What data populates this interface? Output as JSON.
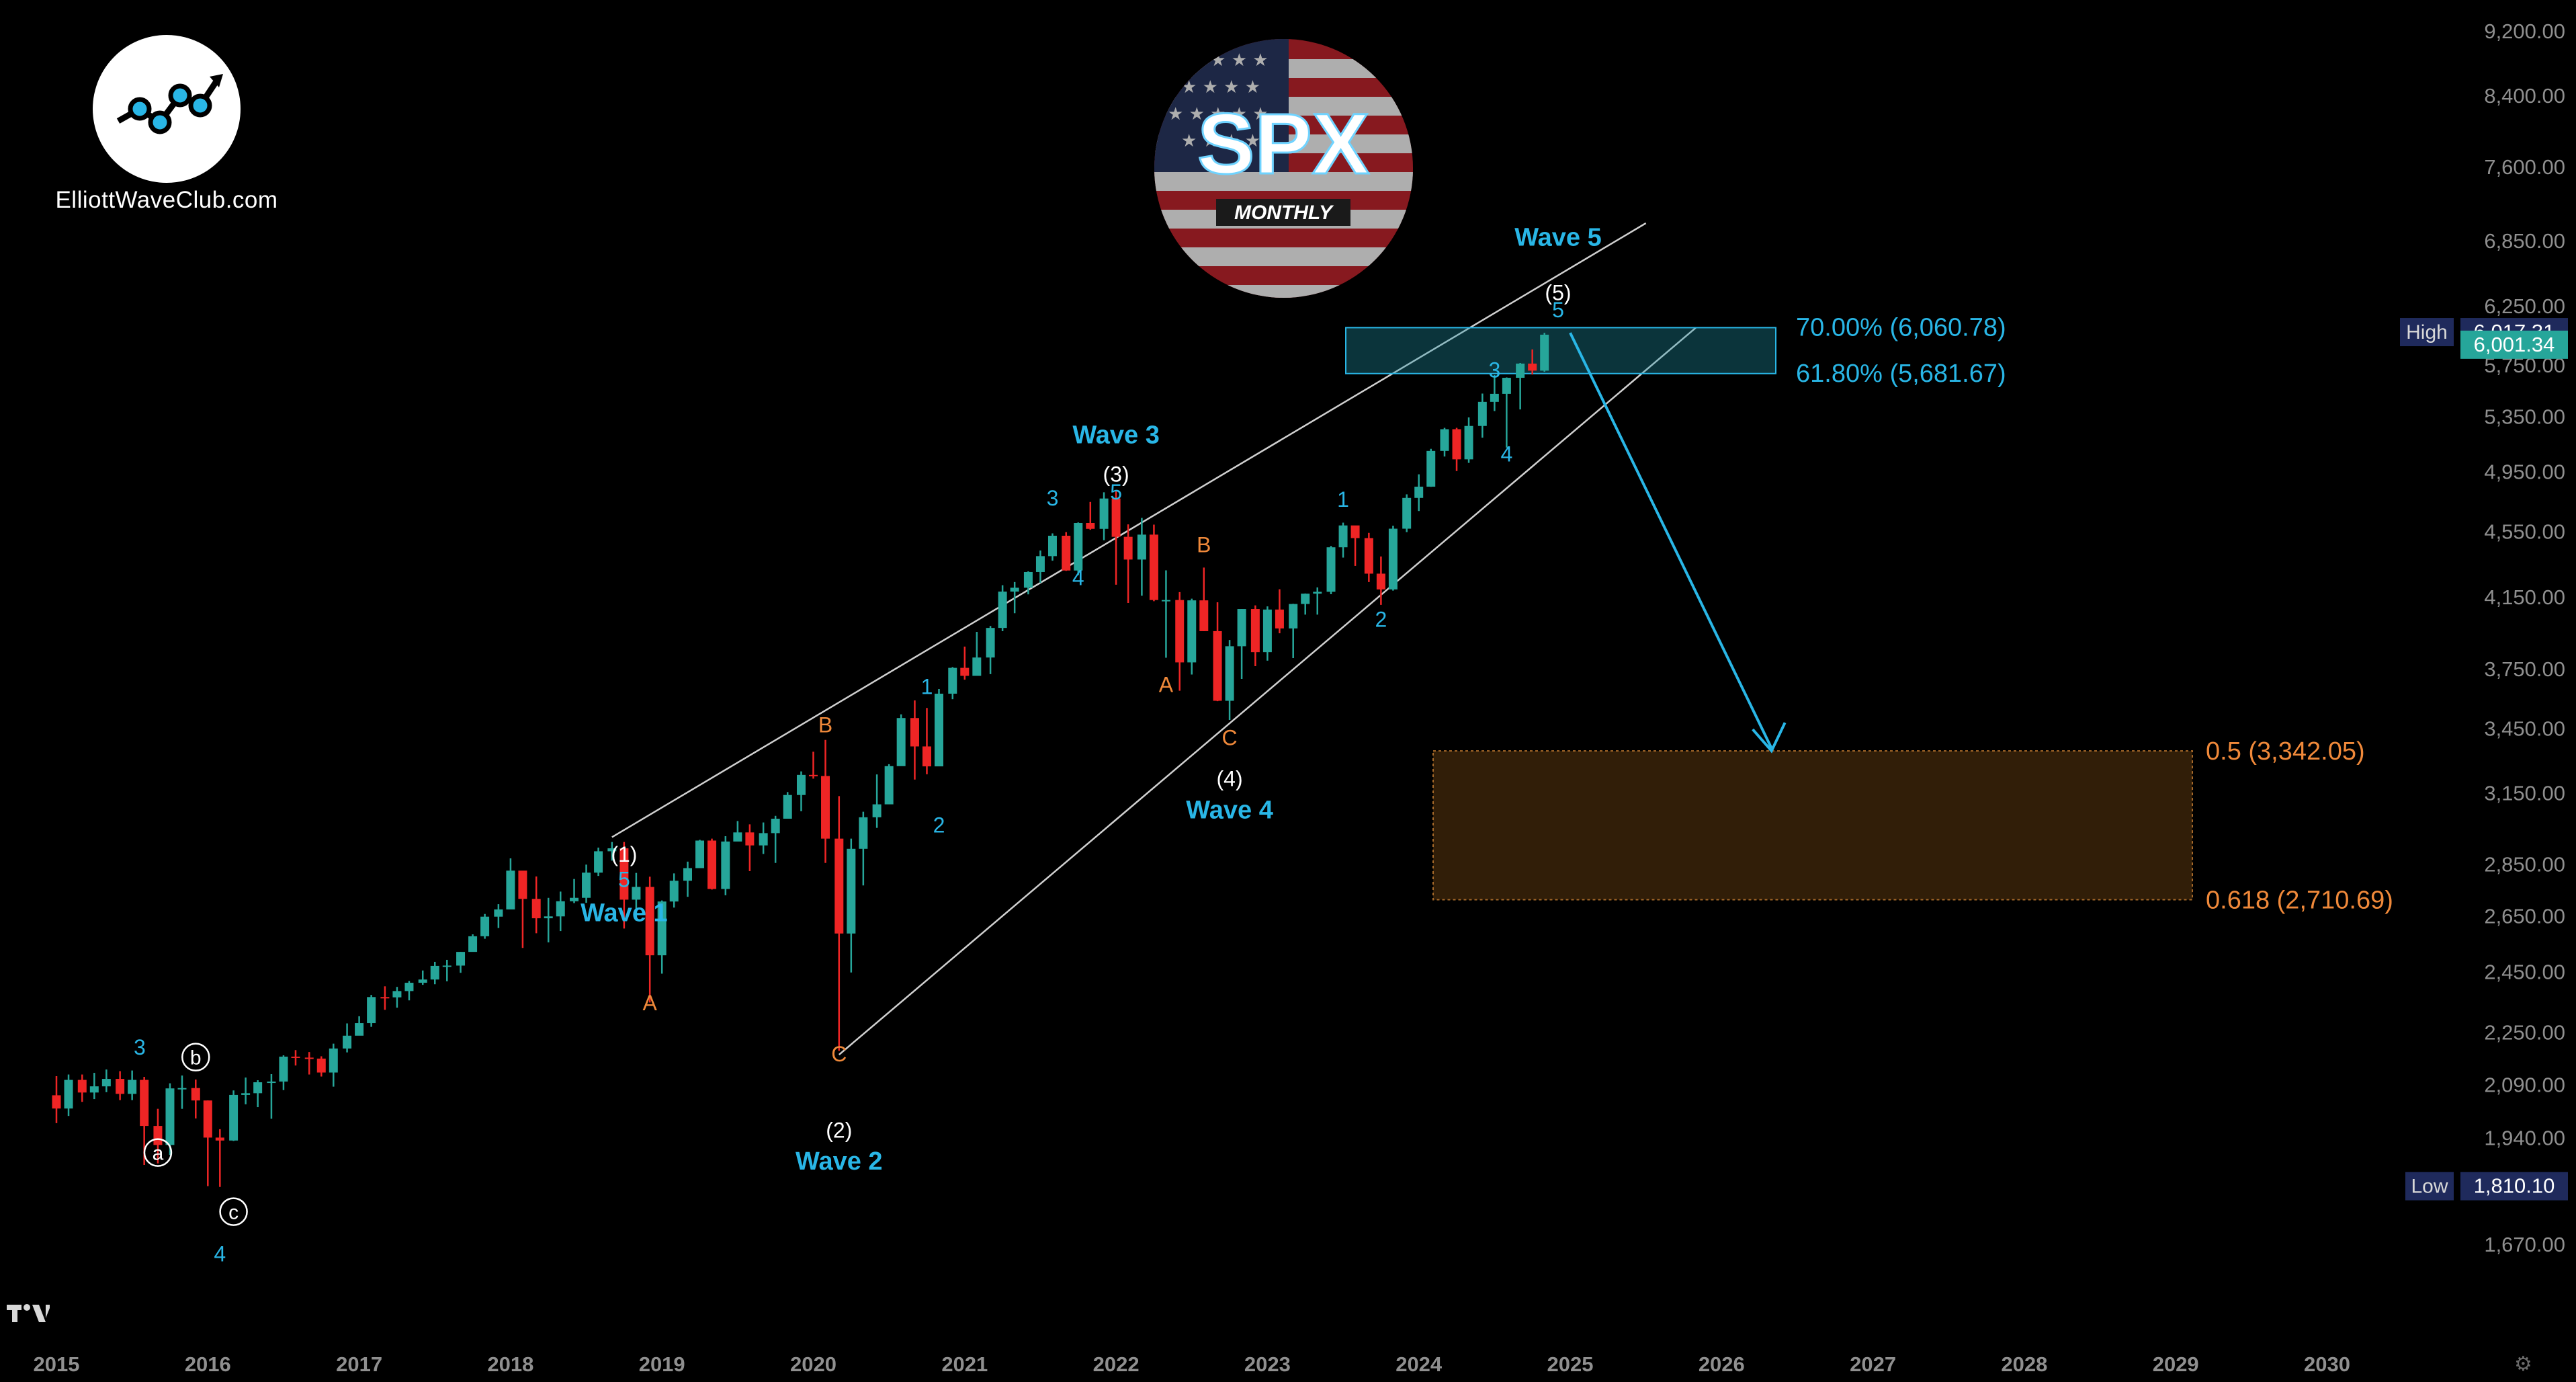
{
  "brand": {
    "name": "ElliottWaveClub.com",
    "logo_icon": "trend-chart-icon"
  },
  "badge": {
    "title": "SPX",
    "subtitle": "MONTHLY",
    "flag_icon": "us-flag-icon"
  },
  "colors": {
    "up": "#26a69a",
    "down": "#ef2525",
    "wave": "#29b6e6",
    "minor": "#29b6e6",
    "abc": "#f0893a",
    "fib_text": "#f0893a",
    "target_box": "rgba(32,150,170,0.35)",
    "target_border": "#29b6e6",
    "retrace_box": "rgba(90,55,15,0.55)",
    "retrace_border": "#a86a2a",
    "channel": "#d0d0d0",
    "axis_text": "#8f8f8f",
    "tag_high": "#1f2a5c",
    "tag_last": "#26a69a"
  },
  "chart_data": {
    "type": "candlestick",
    "title": "SPX",
    "subtitle": "MONTHLY",
    "x_axis_labels": [
      "2015",
      "2016",
      "2017",
      "2018",
      "2019",
      "2020",
      "2021",
      "2022",
      "2023",
      "2024",
      "2025",
      "2026",
      "2027",
      "2028",
      "2029",
      "2030"
    ],
    "y_axis_labels": [
      "9,200.00",
      "8,400.00",
      "7,600.00",
      "6,850.00",
      "6,250.00",
      "5,750.00",
      "5,350.00",
      "4,950.00",
      "4,550.00",
      "4,150.00",
      "3,750.00",
      "3,450.00",
      "3,150.00",
      "2,850.00",
      "2,650.00",
      "2,450.00",
      "2,250.00",
      "2,090.00",
      "1,940.00",
      "1,810.00",
      "1,670.00"
    ],
    "y_scale": "log",
    "ylim": [
      1560,
      9500
    ],
    "xlim": [
      2015.0,
      2030.5
    ],
    "price_tags": {
      "high": {
        "label": "High",
        "value": "6,017.31"
      },
      "last": {
        "value": "6,001.34"
      },
      "low": {
        "label": "Low",
        "value": "1,810.10"
      }
    },
    "wave_labels": [
      {
        "text": "Wave 1",
        "t": 2018.75,
        "price": 2630
      },
      {
        "text": "Wave 2",
        "t": 2020.17,
        "price": 1855
      },
      {
        "text": "Wave 3",
        "t": 2022.0,
        "price": 5150
      },
      {
        "text": "Wave 4",
        "t": 2022.75,
        "price": 3040
      },
      {
        "text": "Wave 5",
        "t": 2024.92,
        "price": 6800
      }
    ],
    "degree_labels": [
      {
        "text": "(1)",
        "t": 2018.75,
        "price": 2860
      },
      {
        "text": "(2)",
        "t": 2020.17,
        "price": 1940
      },
      {
        "text": "(3)",
        "t": 2022.0,
        "price": 4880
      },
      {
        "text": "(4)",
        "t": 2022.75,
        "price": 3180
      },
      {
        "text": "(5)",
        "t": 2024.92,
        "price": 6300
      }
    ],
    "minor_labels": [
      {
        "text": "3",
        "t": 2015.55,
        "price": 2180
      },
      {
        "text": "4",
        "t": 2016.08,
        "price": 1630
      },
      {
        "text": "5",
        "t": 2018.75,
        "price": 2760
      },
      {
        "text": "1",
        "t": 2020.75,
        "price": 3620
      },
      {
        "text": "2",
        "t": 2020.83,
        "price": 2980
      },
      {
        "text": "3",
        "t": 2021.58,
        "price": 4720
      },
      {
        "text": "4",
        "t": 2021.75,
        "price": 4220
      },
      {
        "text": "5",
        "t": 2022.0,
        "price": 4760
      },
      {
        "text": "1",
        "t": 2023.5,
        "price": 4710
      },
      {
        "text": "2",
        "t": 2023.75,
        "price": 3980
      },
      {
        "text": "3",
        "t": 2024.5,
        "price": 5650
      },
      {
        "text": "4",
        "t": 2024.58,
        "price": 5020
      },
      {
        "text": "5",
        "t": 2024.92,
        "price": 6150
      }
    ],
    "abc_labels": [
      {
        "text": "A",
        "t": 2018.92,
        "price": 2320
      },
      {
        "text": "B",
        "t": 2020.08,
        "price": 3430
      },
      {
        "text": "C",
        "t": 2020.17,
        "price": 2160
      },
      {
        "text": "A",
        "t": 2022.33,
        "price": 3630
      },
      {
        "text": "B",
        "t": 2022.58,
        "price": 4420
      },
      {
        "text": "C",
        "t": 2022.75,
        "price": 3370
      }
    ],
    "circled_labels": [
      {
        "text": "a",
        "t": 2015.67,
        "price": 1880
      },
      {
        "text": "b",
        "t": 2015.92,
        "price": 2150
      },
      {
        "text": "c",
        "t": 2016.17,
        "price": 1730
      }
    ],
    "fib_target": {
      "upper_label": "70.00% (6,060.78)",
      "upper": 6060.78,
      "lower_label": "61.80% (5,681.67)",
      "lower": 5681.67
    },
    "fib_retrace": {
      "upper_label": "0.5 (3,342.05)",
      "upper": 3342.05,
      "lower_label": "0.618 (2,710.69)",
      "lower": 2710.69
    },
    "projection_arrow": {
      "from": {
        "t": 2025.0,
        "price": 6017
      },
      "to": {
        "t": 2026.33,
        "price": 3342
      }
    },
    "channel": {
      "upper": {
        "from": {
          "t": 2018.67,
          "price": 2960
        },
        "to": {
          "t": 2025.5,
          "price": 7020
        }
      },
      "lower": {
        "from": {
          "t": 2020.17,
          "price": 2180
        },
        "to": {
          "t": 2025.83,
          "price": 6060
        }
      }
    },
    "candles": [
      [
        2015.0,
        2059,
        2115,
        1980,
        2021
      ],
      [
        2015.08,
        2021,
        2120,
        2000,
        2104
      ],
      [
        2015.17,
        2104,
        2120,
        2040,
        2067
      ],
      [
        2015.25,
        2067,
        2125,
        2048,
        2085
      ],
      [
        2015.33,
        2085,
        2135,
        2068,
        2107
      ],
      [
        2015.42,
        2107,
        2130,
        2045,
        2063
      ],
      [
        2015.5,
        2063,
        2132,
        2045,
        2104
      ],
      [
        2015.58,
        2104,
        2113,
        1867,
        1972
      ],
      [
        2015.67,
        1972,
        2020,
        1871,
        1920
      ],
      [
        2015.75,
        1920,
        2094,
        1893,
        2079
      ],
      [
        2015.83,
        2079,
        2117,
        2020,
        2080
      ],
      [
        2015.92,
        2080,
        2105,
        1993,
        2044
      ],
      [
        2016.0,
        2044,
        2044,
        1812,
        1940
      ],
      [
        2016.08,
        1940,
        1963,
        1810,
        1932
      ],
      [
        2016.17,
        1932,
        2073,
        1931,
        2060
      ],
      [
        2016.25,
        2060,
        2111,
        2033,
        2065
      ],
      [
        2016.33,
        2065,
        2103,
        2025,
        2097
      ],
      [
        2016.42,
        2097,
        2121,
        1992,
        2099
      ],
      [
        2016.5,
        2099,
        2178,
        2074,
        2174
      ],
      [
        2016.58,
        2174,
        2194,
        2147,
        2171
      ],
      [
        2016.67,
        2171,
        2188,
        2120,
        2168
      ],
      [
        2016.75,
        2168,
        2175,
        2114,
        2126
      ],
      [
        2016.83,
        2126,
        2214,
        2084,
        2199
      ],
      [
        2016.92,
        2199,
        2278,
        2187,
        2239
      ],
      [
        2017.0,
        2239,
        2301,
        2245,
        2279
      ],
      [
        2017.08,
        2279,
        2371,
        2267,
        2364
      ],
      [
        2017.17,
        2364,
        2400,
        2322,
        2363
      ],
      [
        2017.25,
        2363,
        2398,
        2329,
        2384
      ],
      [
        2017.33,
        2384,
        2418,
        2353,
        2412
      ],
      [
        2017.42,
        2412,
        2454,
        2405,
        2423
      ],
      [
        2017.5,
        2423,
        2484,
        2407,
        2470
      ],
      [
        2017.58,
        2470,
        2491,
        2417,
        2471
      ],
      [
        2017.67,
        2471,
        2519,
        2446,
        2519
      ],
      [
        2017.75,
        2519,
        2582,
        2520,
        2575
      ],
      [
        2017.83,
        2575,
        2657,
        2566,
        2647
      ],
      [
        2017.92,
        2647,
        2694,
        2605,
        2674
      ],
      [
        2018.0,
        2674,
        2873,
        2683,
        2824
      ],
      [
        2018.08,
        2824,
        2789,
        2533,
        2714
      ],
      [
        2018.17,
        2714,
        2801,
        2586,
        2641
      ],
      [
        2018.25,
        2641,
        2718,
        2553,
        2648
      ],
      [
        2018.33,
        2648,
        2742,
        2594,
        2705
      ],
      [
        2018.42,
        2705,
        2791,
        2698,
        2718
      ],
      [
        2018.5,
        2718,
        2848,
        2699,
        2816
      ],
      [
        2018.58,
        2816,
        2917,
        2803,
        2902
      ],
      [
        2018.67,
        2902,
        2940,
        2864,
        2914
      ],
      [
        2018.75,
        2914,
        2940,
        2603,
        2711
      ],
      [
        2018.83,
        2711,
        2815,
        2632,
        2760
      ],
      [
        2018.92,
        2760,
        2800,
        2346,
        2507
      ],
      [
        2019.0,
        2507,
        2708,
        2443,
        2704
      ],
      [
        2019.08,
        2704,
        2813,
        2681,
        2784
      ],
      [
        2019.17,
        2784,
        2860,
        2722,
        2834
      ],
      [
        2019.25,
        2834,
        2949,
        2848,
        2946
      ],
      [
        2019.33,
        2946,
        2954,
        2750,
        2752
      ],
      [
        2019.42,
        2752,
        2964,
        2728,
        2942
      ],
      [
        2019.5,
        2942,
        3028,
        2952,
        2980
      ],
      [
        2019.58,
        2980,
        3014,
        2822,
        2926
      ],
      [
        2019.67,
        2926,
        3022,
        2891,
        2977
      ],
      [
        2019.75,
        2977,
        3050,
        2855,
        3038
      ],
      [
        2019.83,
        3038,
        3154,
        3050,
        3141
      ],
      [
        2019.92,
        3141,
        3247,
        3070,
        3231
      ],
      [
        2020.0,
        3231,
        3338,
        3214,
        3226
      ],
      [
        2020.08,
        3226,
        3394,
        2855,
        2954
      ],
      [
        2020.17,
        2954,
        3136,
        2192,
        2585
      ],
      [
        2020.25,
        2585,
        2954,
        2447,
        2912
      ],
      [
        2020.33,
        2912,
        3068,
        2766,
        3044
      ],
      [
        2020.42,
        3044,
        3233,
        2999,
        3100
      ],
      [
        2020.5,
        3100,
        3280,
        3101,
        3271
      ],
      [
        2020.58,
        3271,
        3518,
        3280,
        3500
      ],
      [
        2020.67,
        3500,
        3588,
        3210,
        3363
      ],
      [
        2020.75,
        3363,
        3550,
        3234,
        3270
      ],
      [
        2020.83,
        3270,
        3646,
        3279,
        3622
      ],
      [
        2020.92,
        3622,
        3760,
        3594,
        3756
      ],
      [
        2021.0,
        3756,
        3870,
        3694,
        3714
      ],
      [
        2021.08,
        3714,
        3951,
        3725,
        3811
      ],
      [
        2021.17,
        3811,
        3984,
        3723,
        3973
      ],
      [
        2021.25,
        3973,
        4219,
        3955,
        4181
      ],
      [
        2021.33,
        4181,
        4238,
        4056,
        4204
      ],
      [
        2021.42,
        4204,
        4302,
        4165,
        4298
      ],
      [
        2021.5,
        4298,
        4430,
        4233,
        4395
      ],
      [
        2021.58,
        4395,
        4538,
        4367,
        4523
      ],
      [
        2021.67,
        4523,
        4546,
        4305,
        4307
      ],
      [
        2021.75,
        4307,
        4608,
        4279,
        4605
      ],
      [
        2021.83,
        4605,
        4743,
        4561,
        4567
      ],
      [
        2021.92,
        4567,
        4808,
        4495,
        4766
      ],
      [
        2022.0,
        4766,
        4819,
        4222,
        4516
      ],
      [
        2022.08,
        4516,
        4596,
        4115,
        4374
      ],
      [
        2022.17,
        4374,
        4638,
        4157,
        4530
      ],
      [
        2022.25,
        4530,
        4594,
        4125,
        4132
      ],
      [
        2022.33,
        4132,
        4308,
        3810,
        4132
      ],
      [
        2022.42,
        4132,
        4178,
        3637,
        3785
      ],
      [
        2022.5,
        3785,
        4140,
        3721,
        4130
      ],
      [
        2022.58,
        4130,
        4325,
        3955,
        3955
      ],
      [
        2022.67,
        3955,
        4119,
        3584,
        3586
      ],
      [
        2022.75,
        3586,
        3906,
        3491,
        3872
      ],
      [
        2022.83,
        3872,
        4080,
        3698,
        4080
      ],
      [
        2022.92,
        4080,
        4101,
        3765,
        3840
      ],
      [
        2023.0,
        3840,
        4095,
        3794,
        4077
      ],
      [
        2023.08,
        4077,
        4195,
        3943,
        3970
      ],
      [
        2023.17,
        3970,
        4110,
        3808,
        4109
      ],
      [
        2023.25,
        4109,
        4170,
        4048,
        4169
      ],
      [
        2023.33,
        4169,
        4206,
        4048,
        4180
      ],
      [
        2023.42,
        4180,
        4458,
        4166,
        4450
      ],
      [
        2023.5,
        4450,
        4607,
        4386,
        4589
      ],
      [
        2023.58,
        4589,
        4584,
        4335,
        4508
      ],
      [
        2023.67,
        4508,
        4541,
        4238,
        4288
      ],
      [
        2023.75,
        4288,
        4393,
        4104,
        4194
      ],
      [
        2023.83,
        4194,
        4587,
        4187,
        4568
      ],
      [
        2023.92,
        4568,
        4794,
        4546,
        4770
      ],
      [
        2024.0,
        4770,
        4931,
        4683,
        4846
      ],
      [
        2024.08,
        4846,
        5111,
        4845,
        5096
      ],
      [
        2024.17,
        5096,
        5264,
        5056,
        5254
      ],
      [
        2024.25,
        5254,
        5264,
        4954,
        5036
      ],
      [
        2024.33,
        5036,
        5342,
        5011,
        5278
      ],
      [
        2024.42,
        5278,
        5524,
        5192,
        5460
      ],
      [
        2024.5,
        5460,
        5670,
        5390,
        5522
      ],
      [
        2024.58,
        5522,
        5651,
        5120,
        5648
      ],
      [
        2024.67,
        5648,
        5767,
        5402,
        5762
      ],
      [
        2024.75,
        5762,
        5878,
        5674,
        5705
      ],
      [
        2024.83,
        5705,
        6017,
        5696,
        6001
      ]
    ]
  }
}
